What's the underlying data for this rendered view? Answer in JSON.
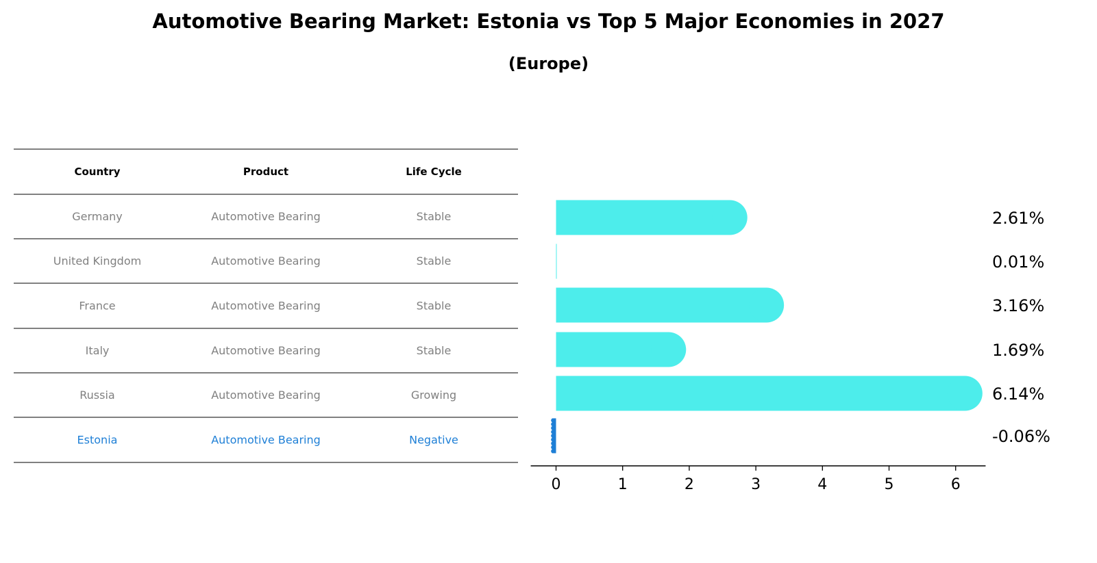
{
  "title": "Automotive Bearing Market: Estonia vs Top 5 Major Economies in 2027",
  "subtitle": "(Europe)",
  "table": {
    "headers": [
      "Country",
      "Product",
      "Life Cycle"
    ],
    "rows": [
      {
        "country": "Germany",
        "product": "Automotive Bearing",
        "life_cycle": "Stable",
        "highlight": false
      },
      {
        "country": "United Kingdom",
        "product": "Automotive Bearing",
        "life_cycle": "Stable",
        "highlight": false
      },
      {
        "country": "France",
        "product": "Automotive Bearing",
        "life_cycle": "Stable",
        "highlight": false
      },
      {
        "country": "Italy",
        "product": "Automotive Bearing",
        "life_cycle": "Stable",
        "highlight": false
      },
      {
        "country": "Russia",
        "product": "Automotive Bearing",
        "life_cycle": "Growing",
        "highlight": false
      },
      {
        "country": "Estonia",
        "product": "Automotive Bearing",
        "life_cycle": "Negative",
        "highlight": true
      }
    ]
  },
  "colors": {
    "bar": "#4DEDEB",
    "highlight": "#1E7FD6",
    "row_text": "#808080",
    "header_text": "#000000",
    "rule": "#000000"
  },
  "chart_data": {
    "type": "bar",
    "orientation": "horizontal",
    "categories": [
      "Germany",
      "United Kingdom",
      "France",
      "Italy",
      "Russia",
      "Estonia"
    ],
    "values": [
      2.61,
      0.01,
      3.16,
      1.69,
      6.14,
      -0.06
    ],
    "value_labels": [
      "2.61%",
      "0.01%",
      "3.16%",
      "1.69%",
      "6.14%",
      "-0.06%"
    ],
    "title": "Automotive Bearing Market: Estonia vs Top 5 Major Economies in 2027",
    "subtitle": "(Europe)",
    "xlabel": "",
    "ylabel": "",
    "xlim": [
      -0.38,
      6.45
    ],
    "xticks": [
      0,
      1,
      2,
      3,
      4,
      5,
      6
    ],
    "grid": false,
    "legend": "none"
  }
}
